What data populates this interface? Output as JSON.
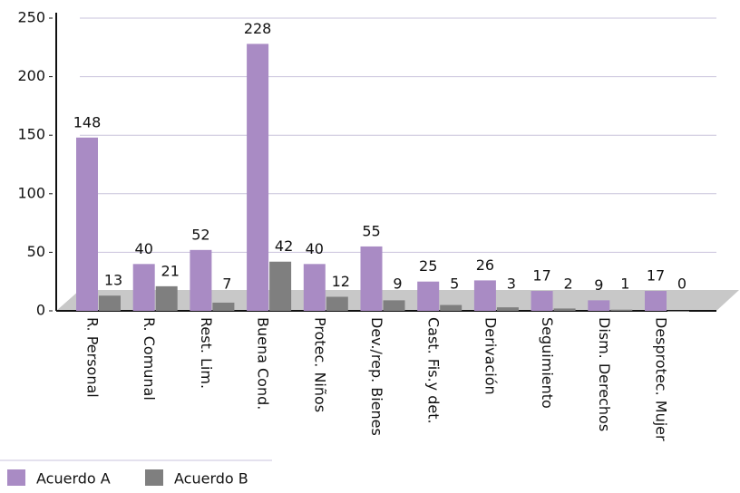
{
  "chart_data": {
    "type": "bar",
    "categories": [
      "R. Personal",
      "R. Comunal",
      "Rest. Lim.",
      "Buena Cond.",
      "Protec. Niños",
      "Dev./rep. Bienes",
      "Cast. Fis.y det.",
      "Derivación",
      "Seguimiento",
      "Dism. Derechos",
      "Desprotec. Mujer"
    ],
    "series": [
      {
        "name": "Acuerdo A",
        "color": "#a98bc4",
        "values": [
          148,
          40,
          52,
          228,
          40,
          55,
          25,
          26,
          17,
          9,
          17
        ]
      },
      {
        "name": "Acuerdo B",
        "color": "#7f7f7f",
        "values": [
          13,
          21,
          7,
          42,
          12,
          9,
          5,
          3,
          2,
          1,
          0
        ]
      }
    ],
    "ylim": [
      0,
      250
    ],
    "yticks": [
      0,
      50,
      100,
      150,
      200,
      250
    ],
    "grid": true,
    "legend": "bottom-left"
  }
}
